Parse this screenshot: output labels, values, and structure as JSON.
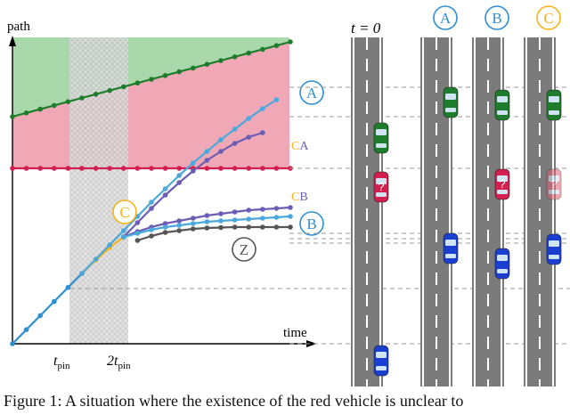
{
  "figure": {
    "y_axis_label": "path",
    "x_axis_label": "time",
    "tick_tpin": "t",
    "tick_tpin_sub": "pin",
    "tick_2tpin": "2t",
    "tick_2tpin_sub": "pin",
    "t0_label": "t = 0",
    "circle_A": "A",
    "circle_B": "B",
    "circle_C": "C",
    "circle_Z": "Z",
    "label_CA_c": "C",
    "label_CA_a": "A",
    "label_CB_c": "C",
    "label_CB_b": "B"
  },
  "colors": {
    "blue": "#4aa8dc",
    "purple": "#6b5cb5",
    "orange": "#f6b31b",
    "green": "#1e7d2c",
    "red": "#d21f4f",
    "gray": "#555555",
    "road": "#7b7b7b",
    "green_region": "#a9d8ab",
    "red_region": "#f0a8b6"
  },
  "caption": {
    "text": "Figure 1: A situation where the existence of the red vehicle is unclear to"
  }
}
